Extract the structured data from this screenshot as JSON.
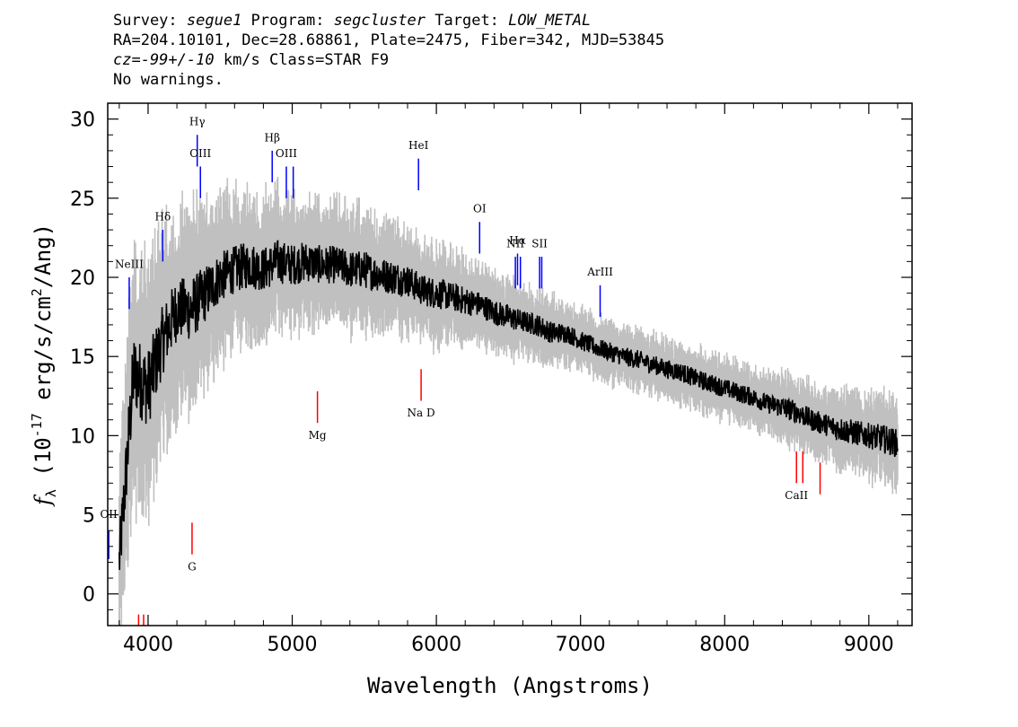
{
  "header": {
    "line1": {
      "survey_label": "Survey: ",
      "survey": "segue1",
      "program_label": " Program: ",
      "program": "segcluster",
      "target_label": " Target: ",
      "target": "LOW_METAL"
    },
    "line2": "RA=204.10101, Dec=28.68861, Plate=2475, Fiber=342, MJD=53845",
    "line3": {
      "cz": "cz=-99+/-10",
      "rest": " km/s Class=STAR F9"
    },
    "line4": "No warnings."
  },
  "chart_data": {
    "type": "line",
    "title": "",
    "xlabel": "Wavelength (Angstroms)",
    "ylabel_parts": {
      "sym": "f",
      "sub": "λ",
      "pre": " (10",
      "sup1": "-17",
      "mid": " erg/s/cm",
      "sup2": "2",
      "post": "/Ang)"
    },
    "xlim": [
      3720,
      9300
    ],
    "ylim": [
      -2,
      31
    ],
    "xticks": [
      4000,
      5000,
      6000,
      7000,
      8000,
      9000
    ],
    "yticks": [
      0,
      5,
      10,
      15,
      20,
      25,
      30
    ],
    "xtick_labels": [
      "4000",
      "5000",
      "6000",
      "7000",
      "8000",
      "9000"
    ],
    "ytick_labels": [
      "0",
      "5",
      "10",
      "15",
      "20",
      "25",
      "30"
    ],
    "grid": false,
    "series": [
      {
        "role": "flux",
        "color": "#000000",
        "x": [
          3800,
          3900,
          4000,
          4100,
          4200,
          4300,
          4400,
          4500,
          4600,
          4700,
          4800,
          4900,
          5000,
          5100,
          5200,
          5300,
          5400,
          5500,
          5600,
          5700,
          5800,
          5900,
          6000,
          6100,
          6200,
          6300,
          6400,
          6500,
          6600,
          6700,
          6800,
          6900,
          7000,
          7100,
          7200,
          7300,
          7400,
          7500,
          7600,
          7700,
          7800,
          7900,
          8000,
          8100,
          8200,
          8300,
          8400,
          8500,
          8600,
          8700,
          8800,
          8900,
          9000,
          9100,
          9200
        ],
        "y": [
          2,
          14,
          13,
          16,
          18,
          18,
          19,
          20,
          20.5,
          20.8,
          20.5,
          21,
          20.8,
          21,
          20.8,
          20.8,
          20.5,
          20.5,
          20.2,
          20,
          19.8,
          19.2,
          19,
          18.8,
          18.5,
          18.3,
          17.8,
          17.5,
          17.2,
          17,
          16.5,
          16.5,
          16,
          15.6,
          15.3,
          15,
          14.8,
          14.5,
          14.2,
          14,
          13.6,
          13.3,
          13,
          12.7,
          12.4,
          12,
          11.8,
          11.5,
          11,
          10.7,
          10.4,
          10.2,
          10,
          9.8,
          9.5
        ],
        "noise": [
          2,
          2.5,
          2.5,
          2.2,
          2,
          2,
          1.8,
          1.6,
          1.5,
          1.5,
          1.4,
          1.4,
          1.3,
          1.3,
          1.2,
          1.2,
          1.2,
          1.2,
          1.1,
          1.1,
          1,
          1,
          1,
          0.9,
          0.9,
          0.8,
          0.8,
          0.8,
          0.7,
          0.7,
          0.7,
          0.6,
          0.6,
          0.6,
          0.6,
          0.6,
          0.6,
          0.6,
          0.6,
          0.6,
          0.6,
          0.6,
          0.6,
          0.6,
          0.6,
          0.6,
          0.7,
          0.7,
          0.7,
          0.7,
          0.8,
          0.8,
          0.8,
          0.9,
          0.9
        ]
      },
      {
        "role": "error-band",
        "color": "#c0c0c0"
      }
    ],
    "emission_lines": [
      {
        "label": "OII",
        "x": 3727,
        "y0": 2.2,
        "y1": 4.0,
        "label_y": 4.8,
        "color": "#0000ff"
      },
      {
        "label": "NeIII",
        "x": 3869,
        "y0": 18.0,
        "y1": 20.0,
        "label_y": 20.6,
        "color": "#0000ff"
      },
      {
        "label": "Hδ",
        "x": 4102,
        "y0": 21.0,
        "y1": 23.0,
        "label_y": 23.6,
        "color": "#0000ff"
      },
      {
        "label": "Hγ",
        "x": 4341,
        "y0": 27.0,
        "y1": 29.0,
        "label_y": 29.6,
        "color": "#0000ff"
      },
      {
        "label": "OIII",
        "x": 4363,
        "y0": 25.0,
        "y1": 27.0,
        "label_y": 27.6,
        "color": "#0000ff"
      },
      {
        "label": "Hβ",
        "x": 4861,
        "y0": 26.0,
        "y1": 28.0,
        "label_y": 28.6,
        "color": "#0000ff"
      },
      {
        "label": "OIII",
        "x": 4959,
        "y0": 25.0,
        "y1": 27.0,
        "label_y": 27.6,
        "color": "#0000ff"
      },
      {
        "label": "",
        "x": 5007,
        "y0": 25.0,
        "y1": 27.0,
        "label_y": 27.6,
        "color": "#0000ff"
      },
      {
        "label": "HeI",
        "x": 5876,
        "y0": 25.5,
        "y1": 27.5,
        "label_y": 28.1,
        "color": "#0000ff"
      },
      {
        "label": "OI",
        "x": 6300,
        "y0": 21.5,
        "y1": 23.5,
        "label_y": 24.1,
        "color": "#0000ff"
      },
      {
        "label": "NII",
        "x": 6548,
        "y0": 19.3,
        "y1": 21.3,
        "label_y": 21.9,
        "color": "#0000ff"
      },
      {
        "label": "Hα",
        "x": 6563,
        "y0": 19.5,
        "y1": 21.5,
        "label_y": 22.1,
        "color": "#0000ff"
      },
      {
        "label": "",
        "x": 6583,
        "y0": 19.3,
        "y1": 21.3,
        "label_y": 21.9,
        "color": "#0000ff"
      },
      {
        "label": "SII",
        "x": 6716,
        "y0": 19.3,
        "y1": 21.3,
        "label_y": 21.9,
        "color": "#0000ff"
      },
      {
        "label": "",
        "x": 6731,
        "y0": 19.3,
        "y1": 21.3,
        "label_y": 21.9,
        "color": "#0000ff"
      },
      {
        "label": "ArIII",
        "x": 7136,
        "y0": 17.5,
        "y1": 19.5,
        "label_y": 20.1,
        "color": "#0000ff"
      }
    ],
    "absorption_lines": [
      {
        "label": "",
        "x": 3934,
        "y0": -2.0,
        "y1": -1.3,
        "label_y": -3.0,
        "color": "#ff0000"
      },
      {
        "label": "",
        "x": 3969,
        "y0": -2.0,
        "y1": -1.3,
        "label_y": -3.0,
        "color": "#ff0000"
      },
      {
        "label": "G",
        "x": 4305,
        "y0": 2.5,
        "y1": 4.5,
        "label_y": 1.5,
        "color": "#ff0000"
      },
      {
        "label": "Mg",
        "x": 5175,
        "y0": 10.8,
        "y1": 12.8,
        "label_y": 9.8,
        "color": "#ff0000"
      },
      {
        "label": "Na D",
        "x": 5894,
        "y0": 12.2,
        "y1": 14.2,
        "label_y": 11.2,
        "color": "#ff0000"
      },
      {
        "label": "CaII",
        "x": 8498,
        "y0": 7.0,
        "y1": 9.0,
        "label_y": 6.0,
        "color": "#ff0000"
      },
      {
        "label": "",
        "x": 8542,
        "y0": 7.0,
        "y1": 9.0,
        "label_y": 6.0,
        "color": "#ff0000"
      },
      {
        "label": "",
        "x": 8662,
        "y0": 6.3,
        "y1": 8.3,
        "label_y": 5.3,
        "color": "#ff0000"
      }
    ]
  }
}
